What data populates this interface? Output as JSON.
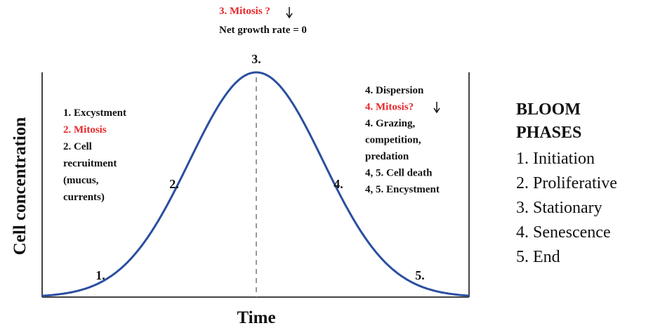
{
  "peak": {
    "mitosis": "3. Mitosis ?",
    "net_growth": "Net growth rate = 0",
    "marker": "3."
  },
  "left_notes": {
    "lines": [
      "1. Excystment",
      "2. Mitosis",
      "2. Cell",
      "recruitment",
      "(mucus,",
      "currents)"
    ],
    "marker_1": "1.",
    "marker_2": "2."
  },
  "right_notes": {
    "lines": [
      "4. Dispersion",
      "4. Mitosis?",
      "4. Grazing,",
      "competition,",
      "predation",
      "4, 5. Cell death",
      "4, 5. Encystment"
    ],
    "marker_4": "4.",
    "marker_5": "5."
  },
  "axes": {
    "y_label": "Cell concentration",
    "x_label": "Time"
  },
  "legend": {
    "title": [
      "BLOOM",
      "PHASES"
    ],
    "items": [
      "1. Initiation",
      "2. Proliferative",
      "3. Stationary",
      "4. Senescence",
      "5. End"
    ]
  }
}
